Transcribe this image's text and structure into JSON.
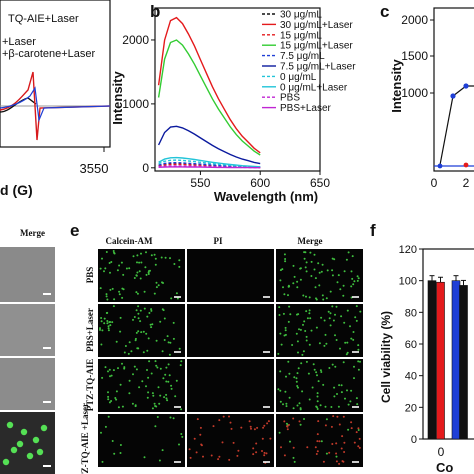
{
  "panels": {
    "b": "b",
    "c": "c",
    "e": "e",
    "f": "f"
  },
  "panel_a": {
    "legend": [
      "TQ-AIE+Laser",
      "+Laser",
      "+β-carotene+Laser"
    ],
    "x_tick_right": "3550",
    "x_label_fragment": "d (G)"
  },
  "panel_c": {
    "y_label": "Intensity",
    "y_ticks": [
      "1000",
      "1500",
      "2000"
    ],
    "x_ticks": [
      "0",
      "2"
    ]
  },
  "panel_d": {
    "header": "Merge"
  },
  "panel_e": {
    "column_headers": [
      "Calcein-AM",
      "PI",
      "Merge"
    ],
    "row_labels": [
      "PBS",
      "PBS+Laser",
      "PTZ-TQ-AIE",
      "PTZ-TQ-AIE +Laser"
    ]
  },
  "panel_f": {
    "y_label": "Cell viability (%)",
    "y_ticks": [
      "0",
      "20",
      "40",
      "60",
      "80",
      "100",
      "120"
    ],
    "x_tick": "0",
    "x_label_fragment": "Co",
    "bars": [
      {
        "color": "#111111",
        "value": 100
      },
      {
        "color": "#e41a1c",
        "value": 99
      },
      {
        "color": "#1f3fd6",
        "value": 100
      },
      {
        "color": "#111111",
        "value": 97
      }
    ]
  },
  "chart_data": {
    "type": "line",
    "xlabel": "Wavelength (nm)",
    "ylabel": "Intensity",
    "x_ticks": [
      550,
      600,
      650
    ],
    "y_ticks": [
      0,
      1000,
      2000
    ],
    "xlim": [
      512,
      650
    ],
    "ylim": [
      -50,
      2500
    ],
    "legend_position": "top-right",
    "series": [
      {
        "name": "30 μg/mL",
        "color": "#111111",
        "style": "dash",
        "peak": 60
      },
      {
        "name": "30 μg/mL+Laser",
        "color": "#e41a1c",
        "style": "solid",
        "peak": 2350
      },
      {
        "name": "15 μg/mL",
        "color": "#e41a1c",
        "style": "dash",
        "peak": 55
      },
      {
        "name": "15 μg/mL+Laser",
        "color": "#33cc33",
        "style": "solid",
        "peak": 2000
      },
      {
        "name": "7.5 μg/mL",
        "color": "#1f3fd6",
        "style": "dash",
        "peak": 80
      },
      {
        "name": "7.5 μg/mL+Laser",
        "color": "#0b1a9e",
        "style": "solid",
        "peak": 650
      },
      {
        "name": "0 μg/mL",
        "color": "#22c4d8",
        "style": "dash",
        "peak": 120
      },
      {
        "name": "0 μg/mL+Laser",
        "color": "#22c4d8",
        "style": "solid",
        "peak": 160
      },
      {
        "name": "PBS",
        "color": "#c026d3",
        "style": "dash",
        "peak": 30
      },
      {
        "name": "PBS+Laser",
        "color": "#c026d3",
        "style": "solid",
        "peak": 15
      }
    ],
    "x": [
      515,
      520,
      525,
      530,
      535,
      540,
      545,
      550,
      555,
      560,
      565,
      570,
      575,
      580,
      585,
      590,
      595,
      600
    ],
    "shape": [
      0.55,
      0.85,
      0.98,
      1.0,
      0.96,
      0.89,
      0.81,
      0.72,
      0.63,
      0.54,
      0.46,
      0.39,
      0.32,
      0.26,
      0.21,
      0.17,
      0.13,
      0.1
    ]
  }
}
